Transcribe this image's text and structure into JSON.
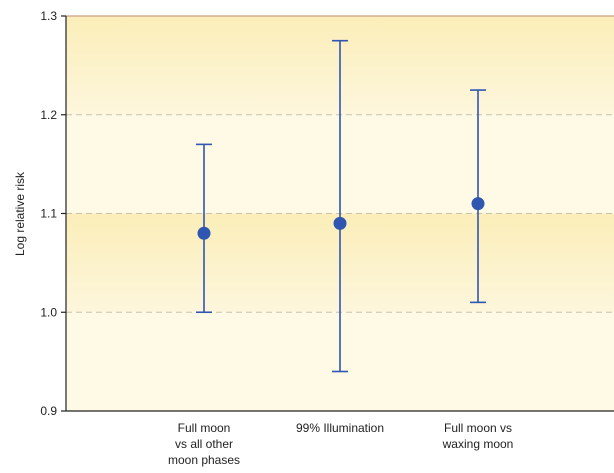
{
  "chart_data": {
    "type": "scatter",
    "title": "",
    "xlabel": "",
    "ylabel": "Log relative risk",
    "ylim": [
      0.9,
      1.3
    ],
    "yticks": [
      "0.9",
      "1.0",
      "1.1",
      "1.2",
      "1.3"
    ],
    "grid": true,
    "categories": [
      "Full moon\nvs all other\nmoon phases",
      "99% Illumination",
      "Full moon vs\nwaxing moon"
    ],
    "series": [
      {
        "points": [
          {
            "category": "Full moon\nvs all other\nmoon phases",
            "value": 1.08,
            "lower": 1.0,
            "upper": 1.17
          },
          {
            "category": "99% Illumination",
            "value": 1.09,
            "lower": 0.94,
            "upper": 1.275
          },
          {
            "category": "Full moon vs\nwaxing moon",
            "value": 1.11,
            "lower": 1.01,
            "upper": 1.225
          }
        ]
      }
    ],
    "colors": {
      "band_dark": "#fbf0c5",
      "band_light": "#fefae6",
      "marker": "#2f56b0",
      "axis": "#222222",
      "top_border": "#c9a080"
    }
  }
}
